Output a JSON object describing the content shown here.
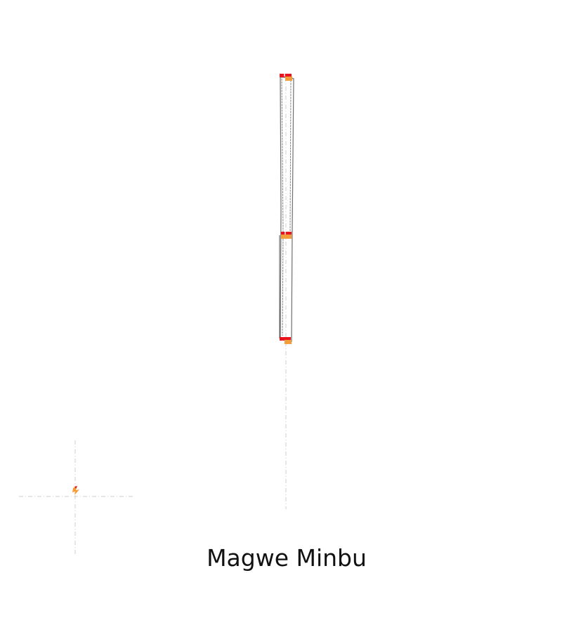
{
  "map": {
    "caption": "Magwe Minbu",
    "colors": {
      "background": "#ffffff",
      "outline": "#6f6f6f",
      "outline_dark": "#555555",
      "guide_line": "#cfcfcf",
      "marker_red": "#e8141e",
      "marker_orange": "#f39c3a"
    }
  }
}
